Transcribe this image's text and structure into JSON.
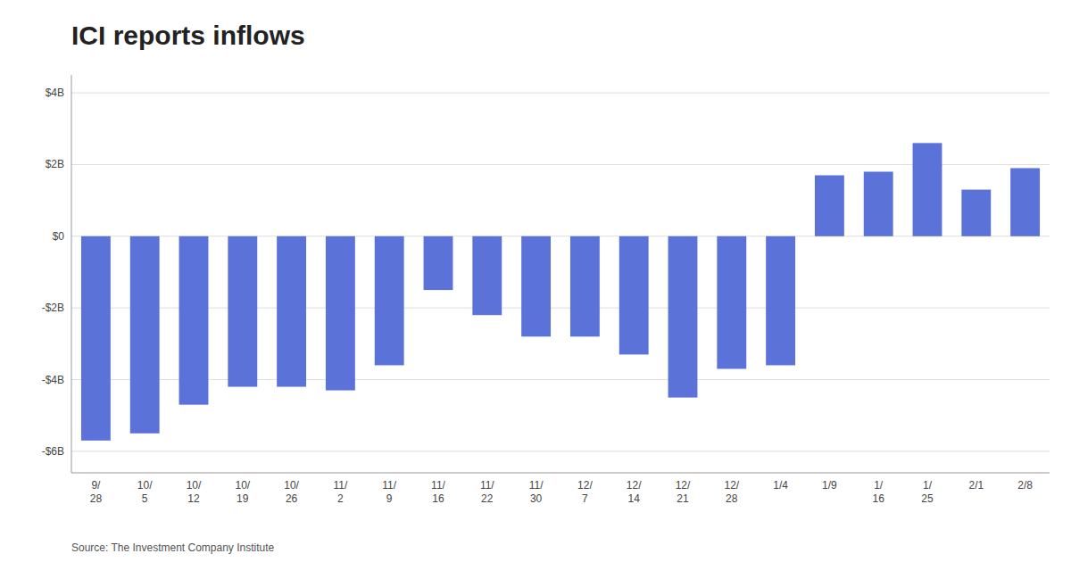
{
  "chart_data": {
    "type": "bar",
    "title": "ICI reports inflows",
    "annotations": [
      "Source: The Investment Company Institute"
    ],
    "categories": [
      "9/\n28",
      "10/\n5",
      "10/\n12",
      "10/\n19",
      "10/\n26",
      "11/\n2",
      "11/\n9",
      "11/\n16",
      "11/\n22",
      "11/\n30",
      "12/\n7",
      "12/\n14",
      "12/\n21",
      "12/\n28",
      "1/4",
      "1/9",
      "1/\n16",
      "1/\n25",
      "2/1",
      "2/8"
    ],
    "values": [
      -5.7,
      -5.5,
      -4.7,
      -4.2,
      -4.2,
      -4.3,
      -3.6,
      -1.5,
      -2.2,
      -2.8,
      -2.8,
      -3.3,
      -4.5,
      -3.7,
      -3.6,
      1.7,
      1.8,
      2.6,
      1.3,
      1.9
    ],
    "color": "#5B72D9",
    "ylim": [
      -6.6,
      4.5
    ],
    "yticks": [
      {
        "value": -6,
        "label": "-$6B"
      },
      {
        "value": -4,
        "label": "-$4B"
      },
      {
        "value": -2,
        "label": "-$2B"
      },
      {
        "value": 0,
        "label": "$0"
      },
      {
        "value": 2,
        "label": "$2B"
      },
      {
        "value": 4,
        "label": "$4B"
      }
    ],
    "grid": true
  }
}
